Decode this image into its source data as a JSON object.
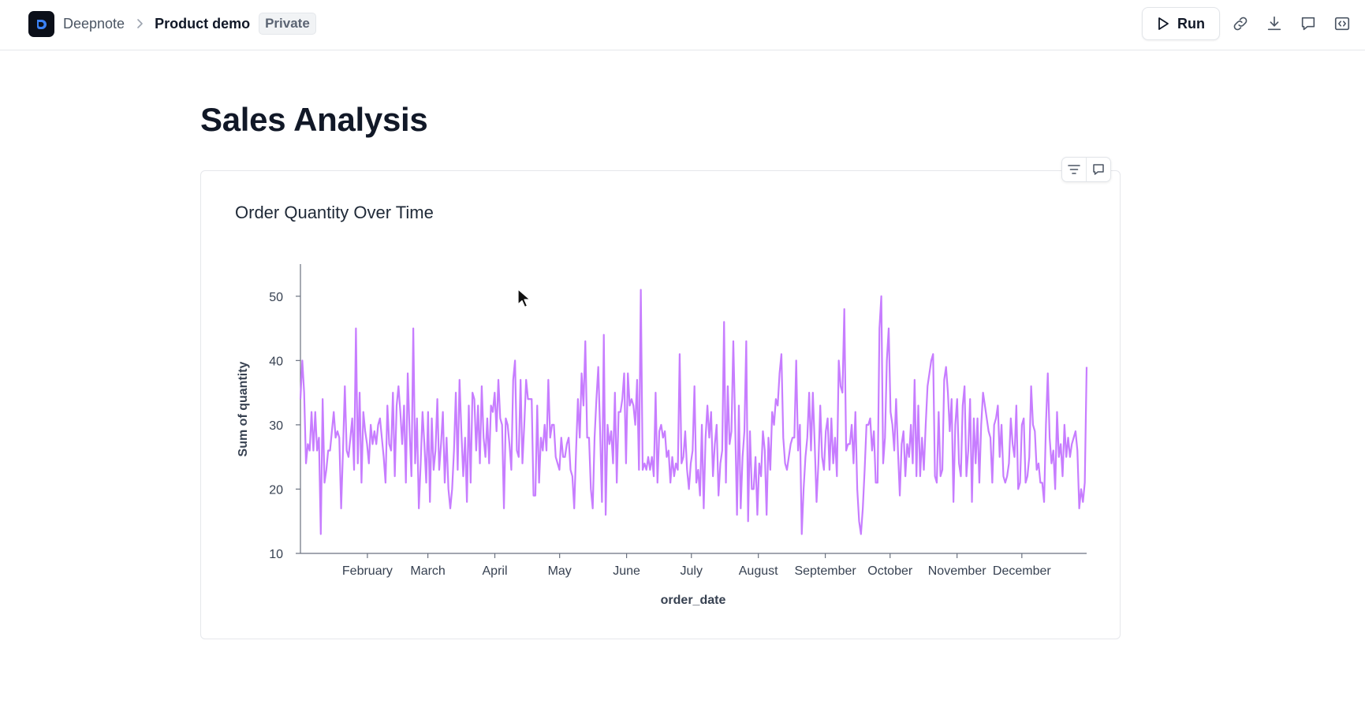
{
  "header": {
    "workspace": "Deepnote",
    "project": "Product demo",
    "visibility_badge": "Private",
    "run_label": "Run",
    "icons": [
      "deepnote-logo-icon",
      "chevron-right-icon",
      "play-icon",
      "link-icon",
      "download-icon",
      "comment-icon",
      "embed-code-icon"
    ]
  },
  "main": {
    "title": "Sales Analysis",
    "card_toolbar_icons": [
      "filter-icon",
      "comment-icon"
    ]
  },
  "colors": {
    "line": "#c77dff",
    "axis": "#6b7280",
    "text": "#111827"
  },
  "chart_data": {
    "type": "line",
    "title": "Order Quantity Over Time",
    "xlabel": "order_date",
    "ylabel": "Sum of quantity",
    "ylim": [
      10,
      55
    ],
    "yticks": [
      10,
      20,
      30,
      40,
      50
    ],
    "xlim": [
      "2021-01-01",
      "2021-12-31"
    ],
    "xtick_labels": [
      "February",
      "March",
      "April",
      "May",
      "June",
      "July",
      "August",
      "September",
      "October",
      "November",
      "December"
    ],
    "xtick_dates": [
      "2021-02-01",
      "2021-03-01",
      "2021-04-01",
      "2021-05-01",
      "2021-06-01",
      "2021-07-01",
      "2021-08-01",
      "2021-09-01",
      "2021-10-01",
      "2021-11-01",
      "2021-12-01"
    ],
    "grid": false,
    "series": [
      {
        "values": [
          34,
          40,
          35,
          24,
          27,
          26,
          32,
          26,
          32,
          26,
          28,
          13,
          34,
          21,
          23,
          26,
          26,
          29,
          32,
          28,
          29,
          28,
          17,
          26,
          36,
          26,
          25,
          28,
          31,
          23,
          45,
          24,
          35,
          21,
          32,
          29,
          27,
          24,
          30,
          27,
          29,
          27,
          30,
          31,
          28,
          25,
          21,
          33,
          27,
          26,
          35,
          22,
          33,
          36,
          32,
          27,
          33,
          21,
          38,
          29,
          22,
          45,
          24,
          31,
          17,
          24,
          32,
          27,
          21,
          32,
          18,
          31,
          23,
          26,
          34,
          23,
          27,
          32,
          21,
          28,
          20,
          17,
          20,
          26,
          35,
          23,
          37,
          29,
          22,
          28,
          18,
          33,
          21,
          35,
          34,
          26,
          33,
          24,
          36,
          28,
          25,
          31,
          24,
          33,
          32,
          35,
          29,
          37,
          31,
          30,
          17,
          31,
          30,
          27,
          23,
          37,
          40,
          26,
          25,
          37,
          24,
          30,
          37,
          34,
          34,
          34,
          19,
          19,
          33,
          21,
          28,
          26,
          30,
          26,
          37,
          28,
          30,
          30,
          25,
          24,
          23,
          28,
          25,
          25,
          27,
          28,
          23,
          22,
          17,
          26,
          34,
          28,
          38,
          33,
          43,
          28,
          28,
          20,
          17,
          28,
          34,
          39,
          29,
          18,
          44,
          16,
          30,
          27,
          29,
          24,
          35,
          21,
          32,
          32,
          34,
          38,
          24,
          38,
          33,
          34,
          33,
          30,
          37,
          23,
          51,
          23,
          24,
          23,
          25,
          23,
          25,
          22,
          35,
          21,
          29,
          30,
          28,
          29,
          25,
          26,
          21,
          25,
          22,
          24,
          23,
          41,
          24,
          25,
          29,
          23,
          20,
          24,
          26,
          36,
          21,
          23,
          19,
          30,
          17,
          28,
          33,
          28,
          32,
          22,
          27,
          30,
          19,
          24,
          26,
          46,
          21,
          36,
          27,
          29,
          43,
          30,
          16,
          33,
          17,
          25,
          29,
          43,
          15,
          29,
          20,
          20,
          25,
          16,
          24,
          22,
          29,
          26,
          16,
          28,
          23,
          32,
          30,
          34,
          33,
          38,
          41,
          28,
          24,
          23,
          25,
          27,
          28,
          28,
          40,
          26,
          30,
          13,
          20,
          25,
          28,
          35,
          26,
          35,
          27,
          18,
          24,
          33,
          25,
          23,
          29,
          31,
          23,
          31,
          24,
          28,
          22,
          40,
          36,
          35,
          48,
          26,
          27,
          27,
          30,
          24,
          32,
          20,
          15,
          13,
          17,
          23,
          30,
          30,
          31,
          26,
          29,
          21,
          21,
          45,
          50,
          24,
          28,
          40,
          45,
          32,
          30,
          26,
          34,
          26,
          19,
          27,
          29,
          22,
          27,
          25,
          30,
          24,
          37,
          22,
          33,
          22,
          28,
          23,
          30,
          36,
          38,
          40,
          41,
          22,
          21,
          32,
          22,
          23,
          37,
          39,
          35,
          29,
          34,
          18,
          30,
          34,
          24,
          22,
          33,
          36,
          22,
          26,
          34,
          18,
          31,
          24,
          31,
          21,
          30,
          35,
          33,
          31,
          29,
          28,
          21,
          30,
          31,
          33,
          25,
          30,
          22,
          21,
          22,
          24,
          31,
          27,
          25,
          33,
          20,
          21,
          30,
          31,
          21,
          22,
          25,
          36,
          30,
          29,
          23,
          24,
          21,
          21,
          18,
          30,
          38,
          28,
          24,
          26,
          20,
          32,
          25,
          27,
          22,
          30,
          25,
          28,
          25,
          27,
          28,
          29,
          26,
          17,
          20,
          18,
          21,
          39
        ],
        "x_start": "2021-01-01",
        "x_end": "2021-12-31"
      }
    ]
  }
}
